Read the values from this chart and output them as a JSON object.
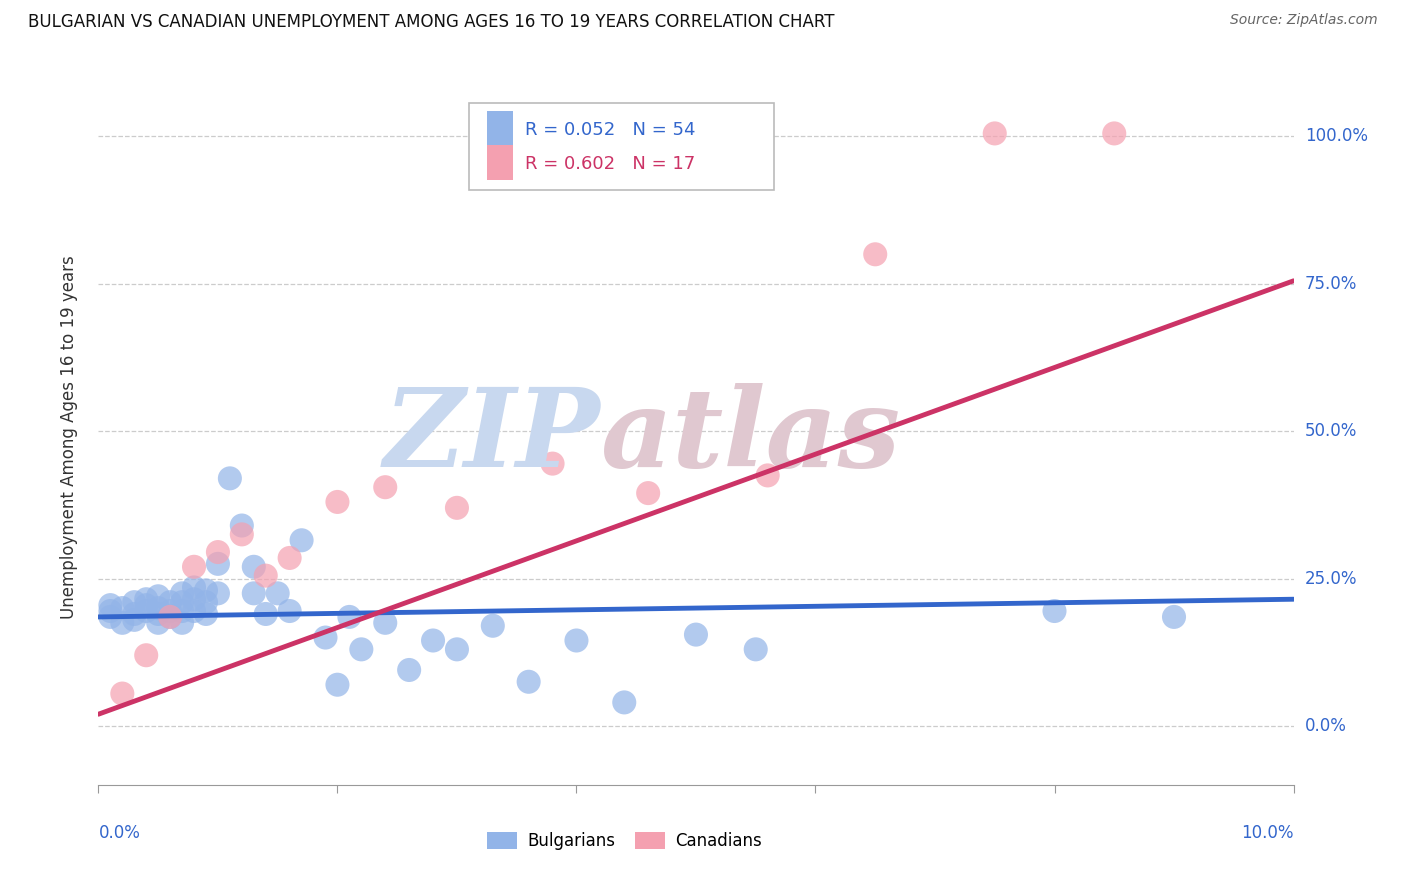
{
  "title": "BULGARIAN VS CANADIAN UNEMPLOYMENT AMONG AGES 16 TO 19 YEARS CORRELATION CHART",
  "source": "Source: ZipAtlas.com",
  "ylabel": "Unemployment Among Ages 16 to 19 years",
  "yticks": [
    0.0,
    0.25,
    0.5,
    0.75,
    1.0
  ],
  "ytick_labels": [
    "0.0%",
    "25.0%",
    "50.0%",
    "75.0%",
    "100.0%"
  ],
  "xlim": [
    0.0,
    0.1
  ],
  "ylim": [
    -0.1,
    1.08
  ],
  "blue_r": 0.052,
  "blue_n": 54,
  "pink_r": 0.602,
  "pink_n": 17,
  "blue_color": "#92b4e8",
  "pink_color": "#f4a0b0",
  "blue_line_color": "#3366cc",
  "pink_line_color": "#cc3366",
  "blue_label": "Bulgarians",
  "pink_label": "Canadians",
  "watermark_zip_color": "#c8d8ef",
  "watermark_atlas_color": "#e0c8d0",
  "title_fontsize": 12,
  "source_fontsize": 10,
  "blue_x": [
    0.001,
    0.001,
    0.001,
    0.002,
    0.002,
    0.003,
    0.003,
    0.003,
    0.004,
    0.004,
    0.004,
    0.005,
    0.005,
    0.005,
    0.005,
    0.006,
    0.006,
    0.006,
    0.007,
    0.007,
    0.007,
    0.007,
    0.008,
    0.008,
    0.008,
    0.009,
    0.009,
    0.009,
    0.01,
    0.01,
    0.011,
    0.012,
    0.013,
    0.013,
    0.014,
    0.015,
    0.016,
    0.017,
    0.019,
    0.02,
    0.021,
    0.022,
    0.024,
    0.026,
    0.028,
    0.03,
    0.033,
    0.036,
    0.04,
    0.044,
    0.05,
    0.055,
    0.08,
    0.09
  ],
  "blue_y": [
    0.195,
    0.205,
    0.185,
    0.175,
    0.2,
    0.18,
    0.19,
    0.21,
    0.195,
    0.205,
    0.215,
    0.175,
    0.19,
    0.2,
    0.22,
    0.185,
    0.195,
    0.21,
    0.175,
    0.195,
    0.21,
    0.225,
    0.195,
    0.215,
    0.235,
    0.19,
    0.21,
    0.23,
    0.275,
    0.225,
    0.42,
    0.34,
    0.27,
    0.225,
    0.19,
    0.225,
    0.195,
    0.315,
    0.15,
    0.07,
    0.185,
    0.13,
    0.175,
    0.095,
    0.145,
    0.13,
    0.17,
    0.075,
    0.145,
    0.04,
    0.155,
    0.13,
    0.195,
    0.185
  ],
  "pink_x": [
    0.002,
    0.004,
    0.006,
    0.008,
    0.01,
    0.012,
    0.014,
    0.016,
    0.02,
    0.024,
    0.03,
    0.038,
    0.046,
    0.056,
    0.065,
    0.075,
    0.085
  ],
  "pink_y": [
    0.055,
    0.12,
    0.185,
    0.27,
    0.295,
    0.325,
    0.255,
    0.285,
    0.38,
    0.405,
    0.37,
    0.445,
    0.395,
    0.425,
    0.8,
    1.005,
    1.005
  ],
  "blue_trend_x": [
    0.0,
    0.1
  ],
  "blue_trend_y": [
    0.185,
    0.215
  ],
  "pink_trend_x": [
    0.0,
    0.1
  ],
  "pink_trend_y": [
    0.02,
    0.755
  ]
}
